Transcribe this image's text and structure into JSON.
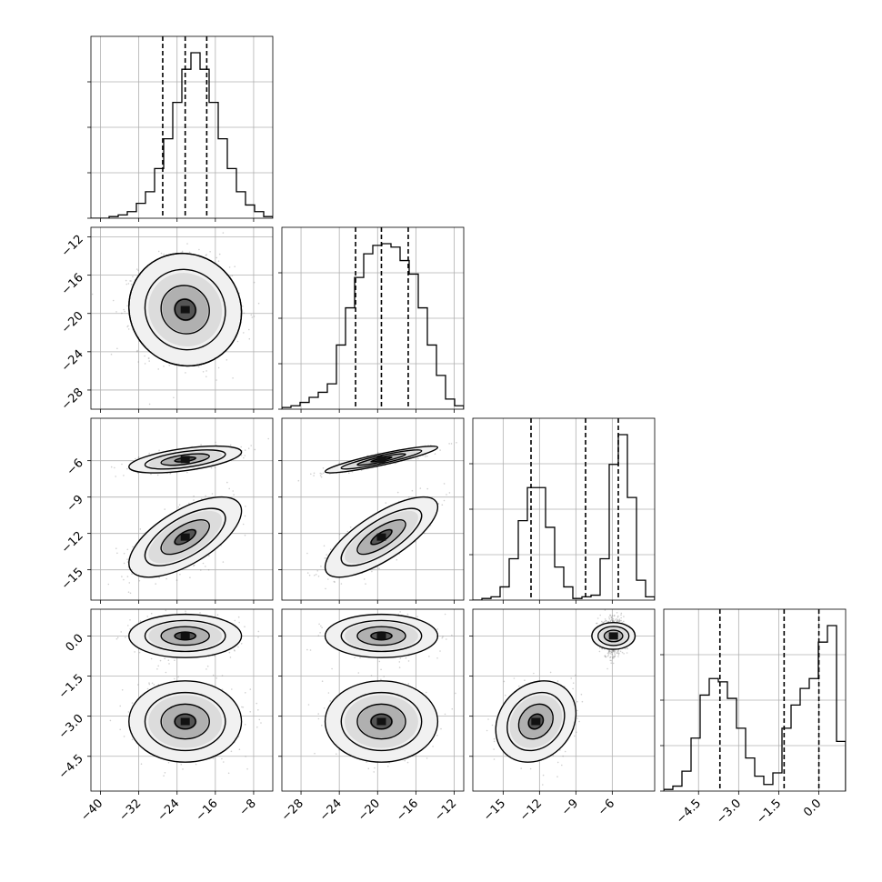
{
  "chart_data": {
    "type": "corner",
    "parameters": 4,
    "axes": [
      {
        "range": [
          -42,
          -4
        ],
        "ticks": [
          -40,
          -32,
          -24,
          -16,
          -8
        ],
        "labels": [
          "−40",
          "−32",
          "−24",
          "−16",
          "−8"
        ]
      },
      {
        "range": [
          -30,
          -11
        ],
        "ticks": [
          -28,
          -24,
          -20,
          -16,
          -12
        ],
        "labels": [
          "−28",
          "−24",
          "−20",
          "−16",
          "−12"
        ]
      },
      {
        "range": [
          -17.5,
          -2.5
        ],
        "ticks": [
          -15,
          -12,
          -9,
          -6
        ],
        "labels": [
          "−15",
          "−12",
          "−9",
          "−6"
        ]
      },
      {
        "range": [
          -5.8,
          1.0
        ],
        "ticks": [
          -4.5,
          -3.0,
          -1.5,
          0.0
        ],
        "labels": [
          "−4.5",
          "−3.0",
          "−1.5",
          "0.0"
        ]
      }
    ],
    "histograms": [
      {
        "bin_edges_start": -42,
        "bin_width": 1.9,
        "counts": [
          0,
          0,
          1,
          2,
          4,
          9,
          16,
          30,
          48,
          70,
          90,
          100,
          90,
          70,
          48,
          30,
          16,
          8,
          4,
          1
        ],
        "quantiles": [
          -27.0,
          -22.3,
          -17.8
        ]
      },
      {
        "bin_edges_start": -30,
        "bin_width": 0.95,
        "counts": [
          1,
          2,
          4,
          7,
          10,
          15,
          38,
          60,
          78,
          92,
          97,
          98,
          96,
          88,
          80,
          60,
          38,
          20,
          6,
          2
        ],
        "quantiles": [
          -22.3,
          -19.6,
          -16.8
        ]
      },
      {
        "bin_edges_start": -17.5,
        "bin_width": 0.75,
        "counts": [
          0,
          1,
          2,
          8,
          25,
          48,
          68,
          68,
          44,
          20,
          8,
          1,
          2,
          3,
          25,
          82,
          100,
          62,
          12,
          2
        ],
        "quantiles": [
          -12.7,
          -8.2,
          -5.5
        ]
      },
      {
        "bin_edges_start": -5.8,
        "bin_width": 0.34,
        "counts": [
          1,
          3,
          12,
          32,
          58,
          68,
          66,
          56,
          38,
          20,
          9,
          4,
          11,
          38,
          52,
          62,
          68,
          90,
          100,
          30
        ],
        "quantiles": [
          -3.7,
          -1.3,
          0.0
        ]
      }
    ],
    "clusters": [
      {
        "weight": 0.5,
        "mean": [
          -22.3,
          -19.6,
          -5.9,
          0.0
        ],
        "sd": [
          4.8,
          2.4,
          0.45,
          0.33
        ],
        "corr_01": -0.05,
        "corr_02": 0.55,
        "corr_12": 0.9,
        "corr_03": 0.0,
        "corr_13": 0.0,
        "corr_23": 0.0
      },
      {
        "weight": 0.5,
        "mean": [
          -22.3,
          -19.6,
          -12.3,
          -3.2
        ],
        "sd": [
          4.8,
          2.4,
          1.35,
          0.62
        ],
        "corr_01": -0.05,
        "corr_02": 0.65,
        "corr_12": 0.75,
        "corr_03": 0.0,
        "corr_13": 0.0,
        "corr_23": 0.2
      }
    ]
  }
}
